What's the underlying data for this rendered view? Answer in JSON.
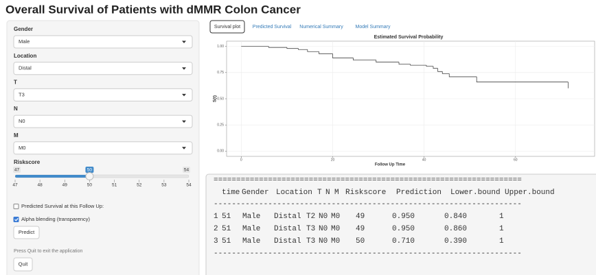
{
  "title": "Overall Survival of Patients with dMMR Colon Cancer",
  "sidebar": {
    "inputs": [
      {
        "label": "Gender",
        "value": "Male"
      },
      {
        "label": "Location",
        "value": "Distal"
      },
      {
        "label": "T",
        "value": "T3"
      },
      {
        "label": "N",
        "value": "N0"
      },
      {
        "label": "M",
        "value": "M0"
      }
    ],
    "riskscore": {
      "label": "Riskscore",
      "min": 47,
      "max": 54,
      "value": 50,
      "ticks": [
        47,
        48,
        49,
        50,
        51,
        52,
        53,
        54
      ]
    },
    "checkboxes": [
      {
        "label": "Predicted Survival at this Follow Up:",
        "checked": false
      },
      {
        "label": "Alpha blending (transparency)",
        "checked": true
      }
    ],
    "predict_button": "Predict",
    "quit_note": "Press Quit to exit the application",
    "quit_button": "Quit"
  },
  "tabs": {
    "items": [
      "Survival plot",
      "Predicted Survival",
      "Numerical Summary",
      "Model Summary"
    ],
    "active": 0
  },
  "chart_data": {
    "type": "step",
    "title": "Estimated Survival Probability",
    "x_label": "Follow Up Time",
    "y_label": "S(t)",
    "color": "#444444",
    "x": [
      0,
      6,
      10,
      12.5,
      14.5,
      17,
      20,
      24.5,
      29.5,
      34.5,
      37,
      40.5,
      42,
      43,
      44,
      45.5,
      51.5,
      71.5
    ],
    "values": [
      1.0,
      0.99,
      0.98,
      0.97,
      0.95,
      0.93,
      0.89,
      0.87,
      0.85,
      0.83,
      0.82,
      0.81,
      0.79,
      0.76,
      0.74,
      0.71,
      0.66,
      0.6
    ],
    "xlim": [
      -3.2,
      77.3
    ],
    "ylim": [
      -0.05,
      1.05
    ],
    "xticks": [
      0,
      20,
      40,
      60
    ],
    "yticks": [
      {
        "value": 0,
        "label": "0.00"
      },
      {
        "value": 0.25,
        "label": "0.25"
      },
      {
        "value": 0.5,
        "label": "0.50"
      },
      {
        "value": 0.75,
        "label": "0.75"
      },
      {
        "value": 1,
        "label": "1.00"
      }
    ],
    "grid": true
  },
  "output": {
    "rule_top": "====================================================================",
    "header": [
      "time",
      "Gender",
      "Location",
      "T",
      "N",
      "M",
      "Riskscore",
      "Prediction",
      "Lower.bound",
      "Upper.bound"
    ],
    "rule_mid": "--------------------------------------------------------------------",
    "rows": [
      [
        "1",
        "51",
        "Male",
        "Distal",
        "T2",
        "N0",
        "M0",
        "49",
        "0.950",
        "0.840",
        "1"
      ],
      [
        "2",
        "51",
        "Male",
        "Distal",
        "T3",
        "N0",
        "M0",
        "49",
        "0.950",
        "0.860",
        "1"
      ],
      [
        "3",
        "51",
        "Male",
        "Distal",
        "T3",
        "N0",
        "M0",
        "50",
        "0.710",
        "0.390",
        "1"
      ]
    ],
    "rule_bottom": "--------------------------------------------------------------------"
  }
}
